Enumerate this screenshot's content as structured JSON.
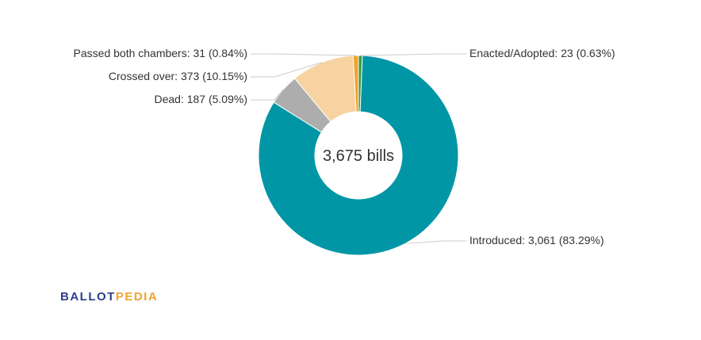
{
  "chart_data": {
    "type": "pie",
    "center_label": "3,675 bills",
    "total": 3675,
    "slices": [
      {
        "name": "Enacted/Adopted",
        "value": 23,
        "percent": 0.63,
        "color": "#3c9a3f",
        "label": "Enacted/Adopted: 23 (0.63%)"
      },
      {
        "name": "Introduced",
        "value": 3061,
        "percent": 83.29,
        "color": "#0096a6",
        "label": "Introduced: 3,061 (83.29%)"
      },
      {
        "name": "Dead",
        "value": 187,
        "percent": 5.09,
        "color": "#adadad",
        "label": "Dead: 187 (5.09%)"
      },
      {
        "name": "Crossed over",
        "value": 373,
        "percent": 10.15,
        "color": "#f6d3a1",
        "label": "Crossed over: 373 (10.15%)"
      },
      {
        "name": "Passed both chambers",
        "value": 31,
        "percent": 0.84,
        "color": "#f0a32e",
        "label": "Passed both chambers: 31 (0.84%)"
      }
    ]
  },
  "branding": {
    "logo_part1": "BALLOT",
    "logo_part2": "PEDIA"
  }
}
